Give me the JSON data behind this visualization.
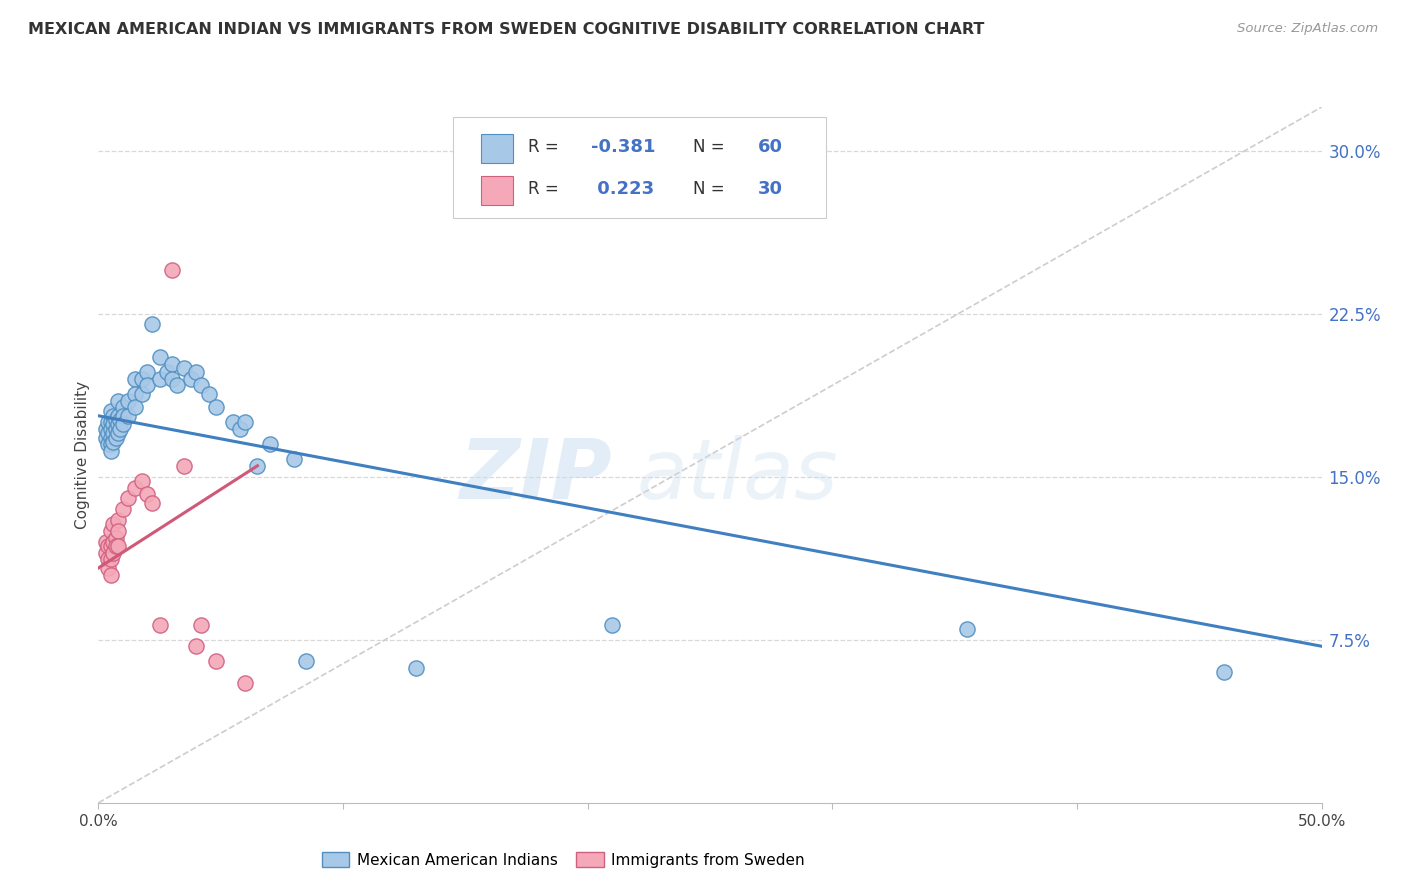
{
  "title": "MEXICAN AMERICAN INDIAN VS IMMIGRANTS FROM SWEDEN COGNITIVE DISABILITY CORRELATION CHART",
  "source": "Source: ZipAtlas.com",
  "ylabel": "Cognitive Disability",
  "watermark_zip": "ZIP",
  "watermark_atlas": "atlas",
  "xmin": 0.0,
  "xmax": 0.5,
  "ymin": 0.0,
  "ymax": 0.32,
  "yticks": [
    0.075,
    0.15,
    0.225,
    0.3
  ],
  "ytick_labels": [
    "7.5%",
    "15.0%",
    "22.5%",
    "30.0%"
  ],
  "xticks": [
    0.0,
    0.1,
    0.2,
    0.3,
    0.4,
    0.5
  ],
  "xtick_labels": [
    "0.0%",
    "",
    "",
    "",
    "",
    "50.0%"
  ],
  "legend_blue_label": "Mexican American Indians",
  "legend_pink_label": "Immigrants from Sweden",
  "blue_color": "#a8c8e8",
  "pink_color": "#f4a8b8",
  "blue_edge_color": "#5090c0",
  "pink_edge_color": "#d06080",
  "blue_line_color": "#4080c0",
  "pink_line_color": "#d05878",
  "dashed_line_color": "#c8c8c8",
  "grid_color": "#d8d8d8",
  "blue_scatter": [
    [
      0.003,
      0.172
    ],
    [
      0.003,
      0.168
    ],
    [
      0.004,
      0.175
    ],
    [
      0.004,
      0.17
    ],
    [
      0.004,
      0.165
    ],
    [
      0.005,
      0.18
    ],
    [
      0.005,
      0.175
    ],
    [
      0.005,
      0.172
    ],
    [
      0.005,
      0.168
    ],
    [
      0.005,
      0.165
    ],
    [
      0.005,
      0.162
    ],
    [
      0.006,
      0.178
    ],
    [
      0.006,
      0.174
    ],
    [
      0.006,
      0.17
    ],
    [
      0.006,
      0.166
    ],
    [
      0.007,
      0.176
    ],
    [
      0.007,
      0.172
    ],
    [
      0.007,
      0.168
    ],
    [
      0.008,
      0.185
    ],
    [
      0.008,
      0.178
    ],
    [
      0.008,
      0.174
    ],
    [
      0.008,
      0.17
    ],
    [
      0.009,
      0.176
    ],
    [
      0.009,
      0.172
    ],
    [
      0.01,
      0.182
    ],
    [
      0.01,
      0.178
    ],
    [
      0.01,
      0.174
    ],
    [
      0.012,
      0.185
    ],
    [
      0.012,
      0.178
    ],
    [
      0.015,
      0.195
    ],
    [
      0.015,
      0.188
    ],
    [
      0.015,
      0.182
    ],
    [
      0.018,
      0.195
    ],
    [
      0.018,
      0.188
    ],
    [
      0.02,
      0.198
    ],
    [
      0.02,
      0.192
    ],
    [
      0.022,
      0.22
    ],
    [
      0.025,
      0.205
    ],
    [
      0.025,
      0.195
    ],
    [
      0.028,
      0.198
    ],
    [
      0.03,
      0.202
    ],
    [
      0.03,
      0.195
    ],
    [
      0.032,
      0.192
    ],
    [
      0.035,
      0.2
    ],
    [
      0.038,
      0.195
    ],
    [
      0.04,
      0.198
    ],
    [
      0.042,
      0.192
    ],
    [
      0.045,
      0.188
    ],
    [
      0.048,
      0.182
    ],
    [
      0.055,
      0.175
    ],
    [
      0.058,
      0.172
    ],
    [
      0.06,
      0.175
    ],
    [
      0.065,
      0.155
    ],
    [
      0.07,
      0.165
    ],
    [
      0.08,
      0.158
    ],
    [
      0.085,
      0.065
    ],
    [
      0.13,
      0.062
    ],
    [
      0.21,
      0.082
    ],
    [
      0.355,
      0.08
    ],
    [
      0.46,
      0.06
    ]
  ],
  "pink_scatter": [
    [
      0.003,
      0.12
    ],
    [
      0.003,
      0.115
    ],
    [
      0.004,
      0.118
    ],
    [
      0.004,
      0.112
    ],
    [
      0.004,
      0.108
    ],
    [
      0.005,
      0.125
    ],
    [
      0.005,
      0.118
    ],
    [
      0.005,
      0.112
    ],
    [
      0.005,
      0.105
    ],
    [
      0.006,
      0.128
    ],
    [
      0.006,
      0.12
    ],
    [
      0.006,
      0.115
    ],
    [
      0.007,
      0.122
    ],
    [
      0.007,
      0.118
    ],
    [
      0.008,
      0.13
    ],
    [
      0.008,
      0.125
    ],
    [
      0.008,
      0.118
    ],
    [
      0.01,
      0.135
    ],
    [
      0.012,
      0.14
    ],
    [
      0.015,
      0.145
    ],
    [
      0.018,
      0.148
    ],
    [
      0.02,
      0.142
    ],
    [
      0.022,
      0.138
    ],
    [
      0.025,
      0.082
    ],
    [
      0.03,
      0.245
    ],
    [
      0.035,
      0.155
    ],
    [
      0.04,
      0.072
    ],
    [
      0.042,
      0.082
    ],
    [
      0.048,
      0.065
    ],
    [
      0.06,
      0.055
    ]
  ],
  "blue_trendline": [
    [
      0.0,
      0.178
    ],
    [
      0.5,
      0.072
    ]
  ],
  "pink_trendline": [
    [
      0.0,
      0.108
    ],
    [
      0.065,
      0.155
    ]
  ],
  "dashed_trendline": [
    [
      0.0,
      0.0
    ],
    [
      0.5,
      0.32
    ]
  ]
}
